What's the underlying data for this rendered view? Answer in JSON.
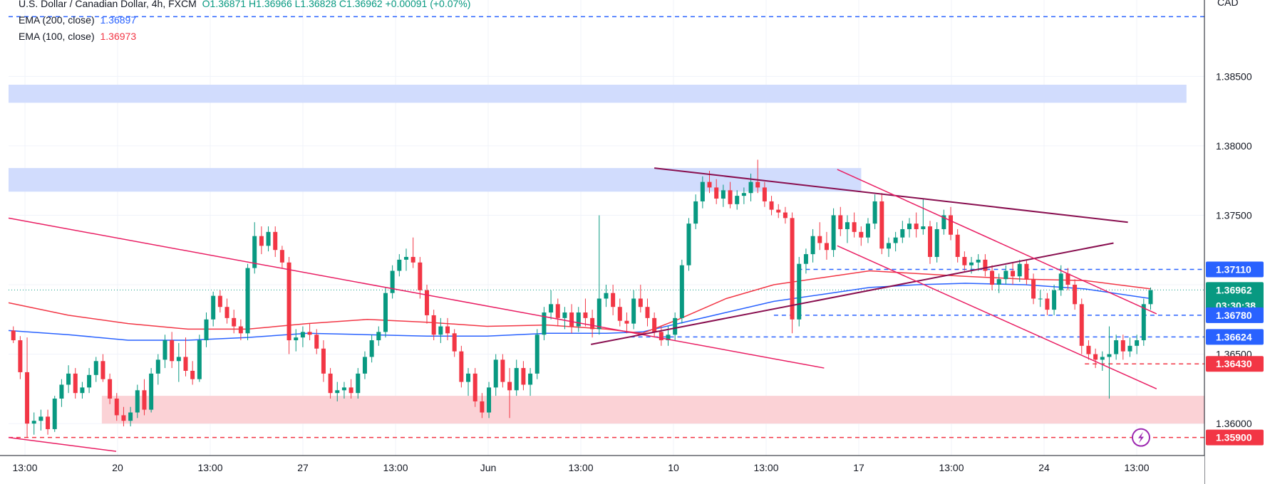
{
  "legend": {
    "title": "U.S. Dollar / Canadian Dollar, 4h, FXCM",
    "ohlc": "O1.36871 H1.36966 L1.36828 C1.36962 +0.00091 (+0.07%)",
    "ema200_label": "EMA (200, close)",
    "ema200_value": "1.36897",
    "ema100_label": "EMA (100, close)",
    "ema100_value": "1.36973"
  },
  "axis": {
    "currency": "CAD"
  },
  "colors": {
    "up": "#089981",
    "down": "#f23645",
    "ema200": "#2962ff",
    "ema100": "#f23645",
    "blue_zone": "#d1dcfd",
    "red_zone": "#fbd2d6",
    "trend_pink": "#e91e63",
    "trend_dark": "#880e4f",
    "level_blue": "#2962ff",
    "level_red": "#f23645"
  },
  "chart_data": {
    "type": "candlestick",
    "ylim": [
      1.3577,
      1.3905
    ],
    "x_ticks": [
      "13:00",
      "20",
      "13:00",
      "27",
      "13:00",
      "Jun",
      "13:00",
      "10",
      "13:00",
      "17",
      "13:00",
      "24",
      "13:00"
    ],
    "y_ticks": [
      "1.38500",
      "1.38000",
      "1.37500",
      "1.36500",
      "1.36000"
    ],
    "price_tags": [
      {
        "label": "1.37110",
        "value": 1.3711,
        "color": "#2962ff"
      },
      {
        "label": "1.36962",
        "sub": "03:30:38",
        "value": 1.36962,
        "color": "#089981"
      },
      {
        "label": "1.36780",
        "value": 1.3678,
        "color": "#2962ff"
      },
      {
        "label": "1.36624",
        "value": 1.36624,
        "color": "#2962ff"
      },
      {
        "label": "1.36430",
        "value": 1.3643,
        "color": "#f23645"
      },
      {
        "label": "1.35900",
        "value": 1.359,
        "color": "#f23645"
      }
    ],
    "levels": [
      {
        "value": 1.3893,
        "color": "#2962ff",
        "style": "dashed",
        "x0": 0.0
      },
      {
        "value": 1.3711,
        "color": "#2962ff",
        "style": "dashed",
        "x0": 0.66
      },
      {
        "value": 1.3678,
        "color": "#2962ff",
        "style": "dashed",
        "x0": 0.64
      },
      {
        "value": 1.36624,
        "color": "#2962ff",
        "style": "dashed",
        "x0": 0.52
      },
      {
        "value": 1.3643,
        "color": "#f23645",
        "style": "dashed",
        "x0": 0.9
      },
      {
        "value": 1.359,
        "color": "#f23645",
        "style": "dashed",
        "x0": 0.0
      },
      {
        "value": 1.36962,
        "color": "#089981",
        "style": "dotted",
        "x0": 0.0
      }
    ],
    "zones": [
      {
        "y_top": 1.3844,
        "y_bottom": 1.3831,
        "x0": 0.0,
        "x1": 0.985,
        "color": "#d1dcfd"
      },
      {
        "y_top": 1.3784,
        "y_bottom": 1.3767,
        "x0": 0.0,
        "x1": 0.713,
        "color": "#d1dcfd"
      },
      {
        "y_top": 1.362,
        "y_bottom": 1.36,
        "x0": 0.078,
        "x1": 1.0,
        "color": "#fbd2d6"
      }
    ],
    "trendlines": [
      {
        "x0": 0.0,
        "y0": 1.3748,
        "x1": 0.682,
        "y1": 1.364,
        "color": "#e91e63"
      },
      {
        "x0": 0.0,
        "y0": 1.359,
        "x1": 0.09,
        "y1": 1.358,
        "color": "#e91e63"
      },
      {
        "x0": 0.54,
        "y0": 1.3784,
        "x1": 0.936,
        "y1": 1.3745,
        "color": "#880e4f"
      },
      {
        "x0": 0.487,
        "y0": 1.3657,
        "x1": 0.924,
        "y1": 1.373,
        "color": "#880e4f"
      },
      {
        "x0": 0.693,
        "y0": 1.3783,
        "x1": 0.96,
        "y1": 1.3679,
        "color": "#e91e63"
      },
      {
        "x0": 0.693,
        "y0": 1.3728,
        "x1": 0.96,
        "y1": 1.3625,
        "color": "#e91e63"
      }
    ],
    "ema100": [
      [
        0.0,
        1.3687
      ],
      [
        0.05,
        1.3678
      ],
      [
        0.1,
        1.3672
      ],
      [
        0.15,
        1.3668
      ],
      [
        0.2,
        1.3668
      ],
      [
        0.25,
        1.3672
      ],
      [
        0.3,
        1.3675
      ],
      [
        0.35,
        1.3673
      ],
      [
        0.4,
        1.367
      ],
      [
        0.45,
        1.3671
      ],
      [
        0.5,
        1.3668
      ],
      [
        0.53,
        1.3665
      ],
      [
        0.56,
        1.3675
      ],
      [
        0.6,
        1.369
      ],
      [
        0.64,
        1.37
      ],
      [
        0.68,
        1.3705
      ],
      [
        0.72,
        1.371
      ],
      [
        0.76,
        1.3708
      ],
      [
        0.8,
        1.3706
      ],
      [
        0.85,
        1.3704
      ],
      [
        0.9,
        1.3703
      ],
      [
        0.955,
        1.3697
      ]
    ],
    "ema200": [
      [
        0.0,
        1.3667
      ],
      [
        0.05,
        1.3664
      ],
      [
        0.1,
        1.366
      ],
      [
        0.15,
        1.366
      ],
      [
        0.2,
        1.3662
      ],
      [
        0.25,
        1.3665
      ],
      [
        0.3,
        1.3664
      ],
      [
        0.35,
        1.3663
      ],
      [
        0.4,
        1.3663
      ],
      [
        0.45,
        1.3665
      ],
      [
        0.5,
        1.3665
      ],
      [
        0.53,
        1.3666
      ],
      [
        0.56,
        1.3672
      ],
      [
        0.6,
        1.368
      ],
      [
        0.64,
        1.3688
      ],
      [
        0.68,
        1.3693
      ],
      [
        0.72,
        1.3698
      ],
      [
        0.76,
        1.37
      ],
      [
        0.8,
        1.3701
      ],
      [
        0.85,
        1.37
      ],
      [
        0.9,
        1.3697
      ],
      [
        0.955,
        1.369
      ]
    ],
    "candles": [
      [
        1.3667,
        1.367,
        1.3658,
        1.366
      ],
      [
        1.366,
        1.3663,
        1.3632,
        1.3637
      ],
      [
        1.3637,
        1.3662,
        1.359,
        1.36
      ],
      [
        1.36,
        1.3608,
        1.3592,
        1.3602
      ],
      [
        1.3602,
        1.361,
        1.3595,
        1.3605
      ],
      [
        1.3605,
        1.361,
        1.3592,
        1.3596
      ],
      [
        1.3596,
        1.362,
        1.3594,
        1.3618
      ],
      [
        1.3618,
        1.3632,
        1.3612,
        1.3628
      ],
      [
        1.3628,
        1.3642,
        1.3622,
        1.3636
      ],
      [
        1.3636,
        1.364,
        1.3618,
        1.3622
      ],
      [
        1.3622,
        1.363,
        1.3618,
        1.3626
      ],
      [
        1.3626,
        1.364,
        1.3622,
        1.3635
      ],
      [
        1.3635,
        1.3648,
        1.363,
        1.3645
      ],
      [
        1.3645,
        1.365,
        1.363,
        1.3632
      ],
      [
        1.3632,
        1.3636,
        1.3614,
        1.3618
      ],
      [
        1.3618,
        1.3622,
        1.3602,
        1.3606
      ],
      [
        1.3606,
        1.3612,
        1.3598,
        1.3602
      ],
      [
        1.3602,
        1.3612,
        1.3598,
        1.3608
      ],
      [
        1.3608,
        1.3628,
        1.3604,
        1.3624
      ],
      [
        1.3624,
        1.3632,
        1.3606,
        1.361
      ],
      [
        1.361,
        1.364,
        1.3608,
        1.3636
      ],
      [
        1.3636,
        1.365,
        1.3628,
        1.3646
      ],
      [
        1.3646,
        1.3664,
        1.364,
        1.366
      ],
      [
        1.366,
        1.3666,
        1.364,
        1.3645
      ],
      [
        1.3645,
        1.3658,
        1.363,
        1.3648
      ],
      [
        1.3648,
        1.3662,
        1.3634,
        1.3638
      ],
      [
        1.3638,
        1.3645,
        1.3628,
        1.3632
      ],
      [
        1.3632,
        1.3664,
        1.363,
        1.366
      ],
      [
        1.366,
        1.368,
        1.3655,
        1.3675
      ],
      [
        1.3675,
        1.3695,
        1.367,
        1.3692
      ],
      [
        1.3692,
        1.3696,
        1.368,
        1.3684
      ],
      [
        1.3684,
        1.369,
        1.3672,
        1.3676
      ],
      [
        1.3676,
        1.3682,
        1.3665,
        1.367
      ],
      [
        1.367,
        1.3675,
        1.366,
        1.3665
      ],
      [
        1.3665,
        1.3715,
        1.366,
        1.3712
      ],
      [
        1.3712,
        1.3745,
        1.3708,
        1.3735
      ],
      [
        1.3735,
        1.3742,
        1.3722,
        1.3728
      ],
      [
        1.3728,
        1.3742,
        1.3724,
        1.3738
      ],
      [
        1.3738,
        1.3742,
        1.372,
        1.3725
      ],
      [
        1.3725,
        1.3728,
        1.3712,
        1.3716
      ],
      [
        1.3716,
        1.372,
        1.365,
        1.366
      ],
      [
        1.366,
        1.3668,
        1.3652,
        1.3662
      ],
      [
        1.3662,
        1.367,
        1.3655,
        1.3666
      ],
      [
        1.3666,
        1.3672,
        1.366,
        1.3664
      ],
      [
        1.3664,
        1.3668,
        1.365,
        1.3654
      ],
      [
        1.3654,
        1.366,
        1.363,
        1.3636
      ],
      [
        1.3636,
        1.364,
        1.3618,
        1.3622
      ],
      [
        1.3622,
        1.363,
        1.3616,
        1.3624
      ],
      [
        1.3624,
        1.363,
        1.3618,
        1.3626
      ],
      [
        1.3626,
        1.3632,
        1.3618,
        1.3622
      ],
      [
        1.3622,
        1.364,
        1.3618,
        1.3636
      ],
      [
        1.3636,
        1.3652,
        1.3632,
        1.3648
      ],
      [
        1.3648,
        1.3664,
        1.3644,
        1.366
      ],
      [
        1.366,
        1.367,
        1.3656,
        1.3666
      ],
      [
        1.3666,
        1.3698,
        1.3662,
        1.3694
      ],
      [
        1.3694,
        1.3714,
        1.369,
        1.371
      ],
      [
        1.371,
        1.3722,
        1.3706,
        1.3718
      ],
      [
        1.3718,
        1.3726,
        1.371,
        1.372
      ],
      [
        1.372,
        1.3734,
        1.3712,
        1.3716
      ],
      [
        1.3716,
        1.372,
        1.369,
        1.3696
      ],
      [
        1.3696,
        1.37,
        1.3672,
        1.3678
      ],
      [
        1.3678,
        1.3682,
        1.366,
        1.3664
      ],
      [
        1.3664,
        1.3676,
        1.3658,
        1.367
      ],
      [
        1.367,
        1.3676,
        1.366,
        1.3665
      ],
      [
        1.3665,
        1.3668,
        1.3648,
        1.3652
      ],
      [
        1.3652,
        1.3656,
        1.3626,
        1.363
      ],
      [
        1.363,
        1.364,
        1.362,
        1.3636
      ],
      [
        1.3636,
        1.364,
        1.3612,
        1.3616
      ],
      [
        1.3616,
        1.3622,
        1.3604,
        1.3608
      ],
      [
        1.3608,
        1.363,
        1.3604,
        1.3626
      ],
      [
        1.3626,
        1.365,
        1.362,
        1.3646
      ],
      [
        1.3646,
        1.365,
        1.3626,
        1.363
      ],
      [
        1.363,
        1.364,
        1.3604,
        1.3624
      ],
      [
        1.3624,
        1.3646,
        1.362,
        1.364
      ],
      [
        1.364,
        1.3645,
        1.3624,
        1.3628
      ],
      [
        1.3628,
        1.364,
        1.362,
        1.3636
      ],
      [
        1.3636,
        1.3668,
        1.3632,
        1.3664
      ],
      [
        1.3664,
        1.3684,
        1.366,
        1.368
      ],
      [
        1.368,
        1.3696,
        1.3675,
        1.3686
      ],
      [
        1.3686,
        1.369,
        1.367,
        1.3676
      ],
      [
        1.3676,
        1.3684,
        1.3668,
        1.368
      ],
      [
        1.368,
        1.3686,
        1.3665,
        1.367
      ],
      [
        1.367,
        1.3684,
        1.3666,
        1.368
      ],
      [
        1.368,
        1.369,
        1.367,
        1.3676
      ],
      [
        1.3676,
        1.3682,
        1.3662,
        1.3668
      ],
      [
        1.3668,
        1.375,
        1.3664,
        1.369
      ],
      [
        1.369,
        1.37,
        1.3684,
        1.3694
      ],
      [
        1.3694,
        1.37,
        1.3678,
        1.3684
      ],
      [
        1.3684,
        1.369,
        1.367,
        1.3674
      ],
      [
        1.3674,
        1.368,
        1.3665,
        1.3672
      ],
      [
        1.3672,
        1.3696,
        1.3668,
        1.369
      ],
      [
        1.369,
        1.37,
        1.368,
        1.3684
      ],
      [
        1.3684,
        1.369,
        1.367,
        1.3676
      ],
      [
        1.3676,
        1.368,
        1.3662,
        1.3666
      ],
      [
        1.3666,
        1.367,
        1.3656,
        1.366
      ],
      [
        1.366,
        1.367,
        1.3656,
        1.3664
      ],
      [
        1.3664,
        1.368,
        1.366,
        1.3676
      ],
      [
        1.3676,
        1.3718,
        1.3672,
        1.3714
      ],
      [
        1.3714,
        1.3748,
        1.371,
        1.3744
      ],
      [
        1.3744,
        1.3765,
        1.374,
        1.376
      ],
      [
        1.376,
        1.3778,
        1.3755,
        1.3774
      ],
      [
        1.3774,
        1.3782,
        1.3766,
        1.377
      ],
      [
        1.377,
        1.3776,
        1.3758,
        1.3762
      ],
      [
        1.3762,
        1.3772,
        1.3756,
        1.3768
      ],
      [
        1.3768,
        1.3774,
        1.3755,
        1.3758
      ],
      [
        1.3758,
        1.3768,
        1.3754,
        1.3764
      ],
      [
        1.3764,
        1.377,
        1.3758,
        1.3766
      ],
      [
        1.3766,
        1.378,
        1.376,
        1.3774
      ],
      [
        1.3774,
        1.379,
        1.3766,
        1.377
      ],
      [
        1.377,
        1.3774,
        1.3756,
        1.376
      ],
      [
        1.376,
        1.3764,
        1.375,
        1.3754
      ],
      [
        1.3754,
        1.3758,
        1.3748,
        1.3752
      ],
      [
        1.3752,
        1.3756,
        1.3744,
        1.3748
      ],
      [
        1.3748,
        1.3752,
        1.3665,
        1.3675
      ],
      [
        1.3675,
        1.372,
        1.367,
        1.3715
      ],
      [
        1.3715,
        1.3726,
        1.3708,
        1.3722
      ],
      [
        1.3722,
        1.374,
        1.3716,
        1.3735
      ],
      [
        1.3735,
        1.3745,
        1.3725,
        1.373
      ],
      [
        1.373,
        1.3738,
        1.3718,
        1.3725
      ],
      [
        1.3725,
        1.3755,
        1.372,
        1.375
      ],
      [
        1.375,
        1.3756,
        1.3735,
        1.374
      ],
      [
        1.374,
        1.375,
        1.373,
        1.3745
      ],
      [
        1.3745,
        1.3752,
        1.3734,
        1.3738
      ],
      [
        1.3738,
        1.3742,
        1.3728,
        1.3734
      ],
      [
        1.3734,
        1.3748,
        1.373,
        1.3744
      ],
      [
        1.3744,
        1.3765,
        1.374,
        1.376
      ],
      [
        1.376,
        1.3766,
        1.3722,
        1.3726
      ],
      [
        1.3726,
        1.3734,
        1.372,
        1.373
      ],
      [
        1.373,
        1.3738,
        1.3724,
        1.3734
      ],
      [
        1.3734,
        1.3746,
        1.373,
        1.374
      ],
      [
        1.374,
        1.3748,
        1.3734,
        1.3744
      ],
      [
        1.3744,
        1.3752,
        1.3734,
        1.374
      ],
      [
        1.374,
        1.3762,
        1.3736,
        1.3742
      ],
      [
        1.3742,
        1.3746,
        1.3715,
        1.372
      ],
      [
        1.372,
        1.3745,
        1.3716,
        1.374
      ],
      [
        1.374,
        1.3754,
        1.3736,
        1.375
      ],
      [
        1.375,
        1.3756,
        1.3732,
        1.3736
      ],
      [
        1.3736,
        1.374,
        1.3716,
        1.372
      ],
      [
        1.372,
        1.3724,
        1.371,
        1.3714
      ],
      [
        1.3714,
        1.372,
        1.3708,
        1.3716
      ],
      [
        1.3716,
        1.3722,
        1.371,
        1.3718
      ],
      [
        1.3718,
        1.3722,
        1.3706,
        1.371
      ],
      [
        1.371,
        1.3714,
        1.3696,
        1.37
      ],
      [
        1.37,
        1.3708,
        1.3694,
        1.3704
      ],
      [
        1.3704,
        1.3714,
        1.37,
        1.371
      ],
      [
        1.371,
        1.3716,
        1.37,
        1.3706
      ],
      [
        1.3706,
        1.3718,
        1.3702,
        1.3715
      ],
      [
        1.3715,
        1.3718,
        1.37,
        1.3704
      ],
      [
        1.3704,
        1.3708,
        1.3686,
        1.369
      ],
      [
        1.369,
        1.3696,
        1.3684,
        1.369
      ],
      [
        1.369,
        1.3694,
        1.3678,
        1.3682
      ],
      [
        1.3682,
        1.37,
        1.3678,
        1.3696
      ],
      [
        1.3696,
        1.3714,
        1.3692,
        1.3708
      ],
      [
        1.3708,
        1.3712,
        1.3696,
        1.37
      ],
      [
        1.37,
        1.3704,
        1.3682,
        1.3686
      ],
      [
        1.3686,
        1.369,
        1.365,
        1.3656
      ],
      [
        1.3656,
        1.366,
        1.3646,
        1.365
      ],
      [
        1.365,
        1.3654,
        1.364,
        1.3646
      ],
      [
        1.3646,
        1.3652,
        1.3638,
        1.3648
      ],
      [
        1.3648,
        1.367,
        1.3618,
        1.365
      ],
      [
        1.365,
        1.3664,
        1.3646,
        1.366
      ],
      [
        1.366,
        1.3664,
        1.3646,
        1.3652
      ],
      [
        1.3652,
        1.3662,
        1.3648,
        1.3656
      ],
      [
        1.3656,
        1.3664,
        1.365,
        1.366
      ],
      [
        1.366,
        1.369,
        1.3656,
        1.3686
      ],
      [
        1.3686,
        1.3698,
        1.3682,
        1.3696
      ]
    ]
  }
}
